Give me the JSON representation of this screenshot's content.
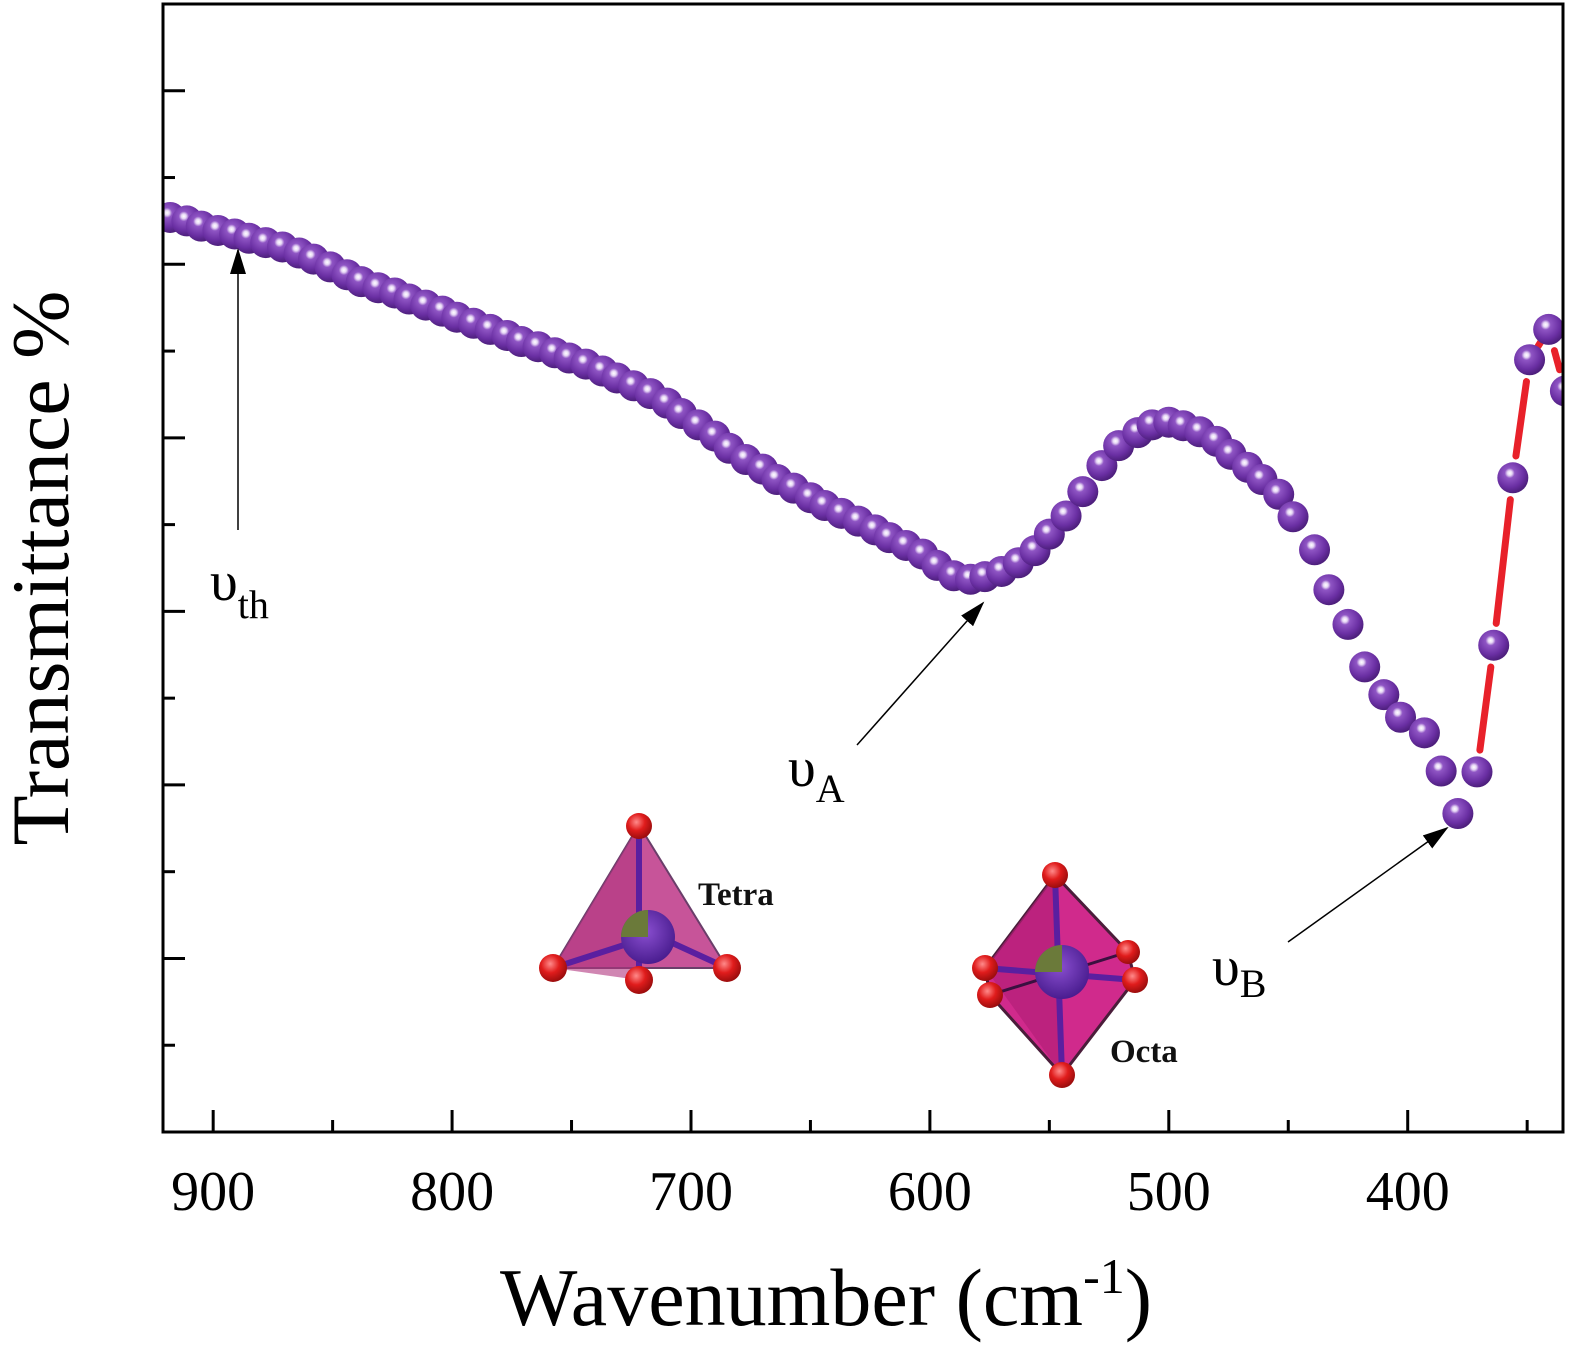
{
  "chart_data": {
    "type": "scatter",
    "title": "",
    "xlabel": "Wavenumber (cm",
    "xlabel_sup": "-1",
    "xlabel_close": ")",
    "ylabel": "Transmittance %",
    "xlim": [
      921,
      335
    ],
    "ylim": [
      0,
      13
    ],
    "x_reversed": true,
    "x_ticks": [
      900,
      800,
      700,
      600,
      500,
      400
    ],
    "x_tick_labels": [
      "900",
      "800",
      "700",
      "600",
      "500",
      "400"
    ],
    "y_tick_labels_shown": false,
    "grid": false,
    "legend": "none",
    "marker_color": "#6a2fa3",
    "fit_line_color": "#e8212a",
    "fit_line_from_x": 371,
    "x": [
      918,
      911,
      905,
      898,
      891,
      885,
      878,
      871,
      864,
      858,
      851,
      844,
      838,
      831,
      824,
      818,
      811,
      804,
      798,
      791,
      784,
      777,
      771,
      764,
      757,
      751,
      744,
      737,
      731,
      724,
      717,
      710,
      704,
      697,
      690,
      684,
      677,
      670,
      664,
      657,
      650,
      644,
      637,
      630,
      623,
      617,
      610,
      603,
      597,
      590,
      583,
      577,
      570,
      563,
      556,
      550,
      543,
      536,
      528,
      521,
      513,
      507,
      500,
      494,
      487,
      480,
      474,
      467,
      461,
      454,
      448,
      439,
      433,
      425,
      418,
      410,
      403,
      393,
      386,
      379,
      371,
      364,
      356,
      349,
      341,
      334
    ],
    "y": [
      10.54,
      10.5,
      10.44,
      10.39,
      10.35,
      10.3,
      10.25,
      10.2,
      10.13,
      10.06,
      9.97,
      9.88,
      9.8,
      9.73,
      9.67,
      9.6,
      9.53,
      9.46,
      9.39,
      9.32,
      9.25,
      9.18,
      9.11,
      9.05,
      8.98,
      8.92,
      8.85,
      8.77,
      8.69,
      8.6,
      8.51,
      8.4,
      8.28,
      8.15,
      8.02,
      7.88,
      7.75,
      7.64,
      7.52,
      7.42,
      7.31,
      7.22,
      7.13,
      7.04,
      6.94,
      6.85,
      6.76,
      6.66,
      6.53,
      6.41,
      6.37,
      6.4,
      6.46,
      6.56,
      6.7,
      6.89,
      7.1,
      7.38,
      7.68,
      7.91,
      8.06,
      8.15,
      8.18,
      8.14,
      8.07,
      7.96,
      7.81,
      7.66,
      7.52,
      7.35,
      7.09,
      6.71,
      6.25,
      5.85,
      5.36,
      5.04,
      4.78,
      4.6,
      4.16,
      3.67,
      4.15,
      5.61,
      7.54,
      8.9,
      9.25,
      8.54
    ],
    "annotations": [
      {
        "symbol": "υ",
        "sub": "th",
        "points_to_x": 890
      },
      {
        "symbol": "υ",
        "sub": "A",
        "points_to_x": 577
      },
      {
        "symbol": "υ",
        "sub": "B",
        "points_to_x": 379
      }
    ],
    "insets": [
      {
        "label": "Tetra"
      },
      {
        "label": "Octa"
      }
    ]
  }
}
